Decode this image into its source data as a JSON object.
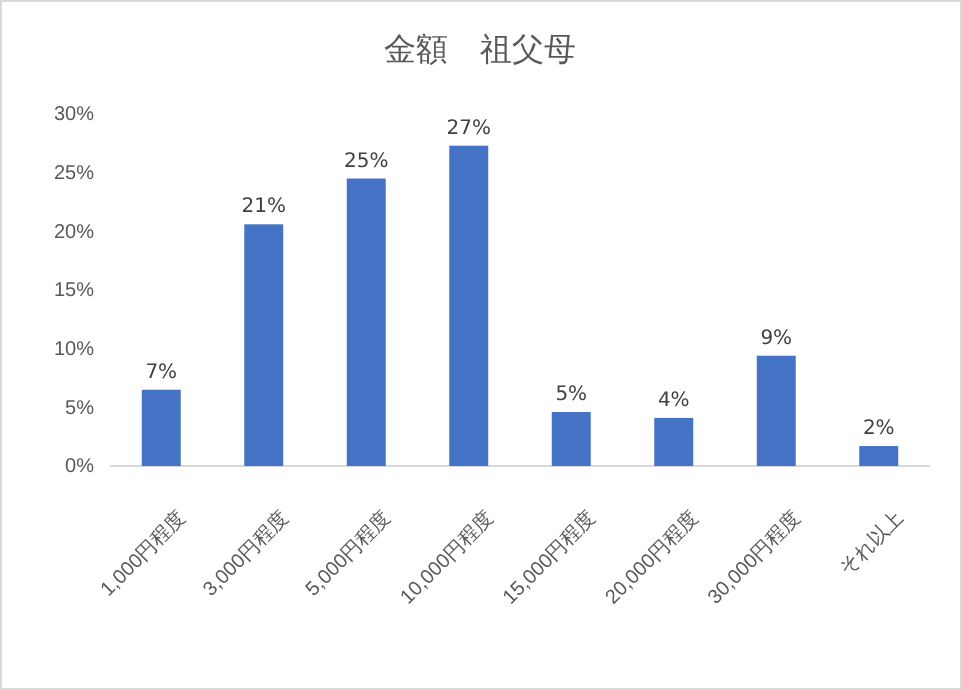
{
  "chart_data": {
    "type": "bar",
    "title": "金額　祖父母",
    "categories": [
      "1,000円程度",
      "3,000円程度",
      "5,000円程度",
      "10,000円程度",
      "15,000円程度",
      "20,000円程度",
      "30,000円程度",
      "それ以上"
    ],
    "values": [
      6.5,
      20.6,
      24.5,
      27.3,
      4.6,
      4.1,
      9.4,
      1.7
    ],
    "value_labels": [
      "7%",
      "21%",
      "25%",
      "27%",
      "5%",
      "4%",
      "9%",
      "2%"
    ],
    "color": "#4472c4",
    "ylim": [
      0,
      30
    ],
    "yticks": [
      {
        "value": 0,
        "label": "0%"
      },
      {
        "value": 5,
        "label": "5%"
      },
      {
        "value": 10,
        "label": "10%"
      },
      {
        "value": 15,
        "label": "15%"
      },
      {
        "value": 20,
        "label": "20%"
      },
      {
        "value": 25,
        "label": "25%"
      },
      {
        "value": 30,
        "label": "30%"
      }
    ],
    "grid": false
  }
}
